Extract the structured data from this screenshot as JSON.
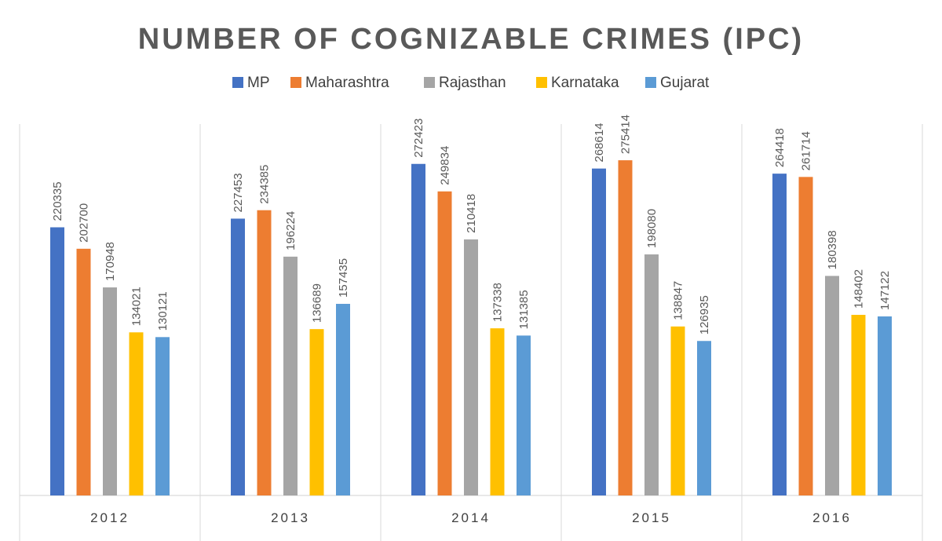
{
  "chart_data": {
    "type": "bar",
    "title": "NUMBER OF COGNIZABLE CRIMES (IPC)",
    "xlabel": "",
    "ylabel": "",
    "categories": [
      "2012",
      "2013",
      "2014",
      "2015",
      "2016"
    ],
    "series": [
      {
        "name": "MP",
        "color": "#4472C4",
        "values": [
          220335,
          227453,
          272423,
          268614,
          264418
        ]
      },
      {
        "name": "Maharashtra",
        "color": "#ED7D31",
        "values": [
          202700,
          234385,
          249834,
          275414,
          261714
        ]
      },
      {
        "name": "Rajasthan",
        "color": "#A5A5A5",
        "values": [
          170948,
          196224,
          210418,
          198080,
          180398
        ]
      },
      {
        "name": "Karnataka",
        "color": "#FFC000",
        "values": [
          134021,
          136689,
          137338,
          138847,
          148402
        ]
      },
      {
        "name": "Gujarat",
        "color": "#5B9BD5",
        "values": [
          130121,
          157435,
          131385,
          126935,
          147122
        ]
      }
    ],
    "ylim": [
      0,
      300000
    ],
    "grid": false,
    "legend": "top-center",
    "data_labels": true
  }
}
